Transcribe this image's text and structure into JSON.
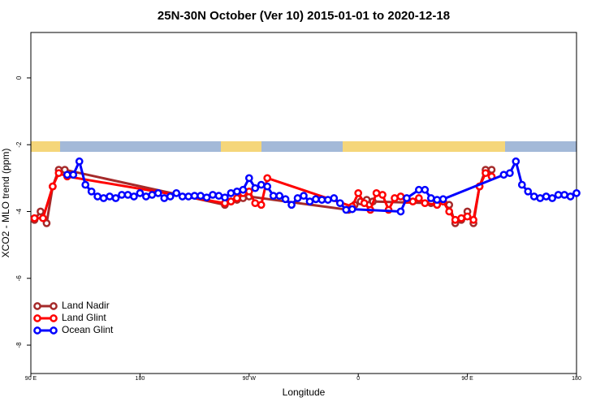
{
  "chart_data": {
    "type": "line",
    "title": "25N-30N October (Ver 10)   2015-01-01 to 2020-12-18",
    "x_label": "Longitude",
    "y_label": "XCO2 - MLO trend (ppm)",
    "xlim": [
      90,
      540
    ],
    "xticks": [
      {
        "value": 90,
        "label": "90 E"
      },
      180,
      {
        "value": 270,
        "label": "90 W"
      },
      {
        "value": 360,
        "label": "0"
      },
      {
        "value": 450,
        "label": "90 E"
      },
      {
        "value": 540,
        "label": "180"
      }
    ],
    "ylim": [
      -8.85,
      1.36
    ],
    "yticks": [
      0,
      -2,
      -4,
      -6,
      -8
    ],
    "legend": "bottom-left",
    "series": [
      {
        "name": "Land Nadir",
        "color": "#a52a2a",
        "x": [
          93,
          98,
          103,
          108,
          113,
          118,
          250,
          255,
          260,
          265,
          270,
          352,
          357,
          362,
          367,
          372,
          420,
          425,
          430,
          435,
          440,
          445,
          450,
          455,
          460,
          465,
          470
        ],
        "values": [
          -4.25,
          -4.0,
          -4.35,
          -3.25,
          -2.75,
          -2.75,
          -3.8,
          -3.7,
          -3.65,
          -3.6,
          -3.55,
          -3.95,
          -3.8,
          -3.7,
          -3.65,
          -3.7,
          -3.75,
          -3.7,
          -3.7,
          -3.8,
          -4.35,
          -4.25,
          -4.0,
          -4.35,
          -3.25,
          -2.75,
          -2.75
        ]
      },
      {
        "name": "Land Glint",
        "color": "#ff0000",
        "x": [
          93,
          100,
          108,
          113,
          120,
          250,
          255,
          260,
          265,
          270,
          275,
          280,
          285,
          355,
          360,
          365,
          370,
          375,
          380,
          385,
          390,
          395,
          400,
          405,
          410,
          415,
          425,
          430,
          435,
          440,
          445,
          450,
          455,
          460,
          465,
          470
        ],
        "values": [
          -4.2,
          -4.2,
          -3.25,
          -2.85,
          -2.95,
          -3.75,
          -3.7,
          -3.6,
          -3.45,
          -3.4,
          -3.75,
          -3.8,
          -3.0,
          -3.85,
          -3.45,
          -3.75,
          -3.95,
          -3.45,
          -3.5,
          -3.95,
          -3.6,
          -3.55,
          -3.65,
          -3.7,
          -3.6,
          -3.75,
          -3.8,
          -3.7,
          -4.0,
          -4.25,
          -4.2,
          -4.15,
          -4.25,
          -3.25,
          -2.85,
          -2.95
        ]
      },
      {
        "name": "Ocean Glint",
        "color": "#0000ff",
        "x": [
          120,
          125,
          130,
          135,
          140,
          145,
          150,
          155,
          160,
          165,
          170,
          175,
          180,
          185,
          190,
          195,
          200,
          205,
          210,
          215,
          220,
          225,
          230,
          235,
          240,
          245,
          250,
          255,
          260,
          265,
          270,
          275,
          280,
          285,
          290,
          295,
          300,
          305,
          310,
          315,
          320,
          325,
          330,
          335,
          340,
          345,
          350,
          355,
          395,
          400,
          410,
          415,
          420,
          425,
          430,
          480,
          485,
          490,
          495,
          500,
          505,
          510,
          515,
          520,
          525,
          530,
          535,
          540
        ],
        "values": [
          -2.9,
          -2.9,
          -2.5,
          -3.2,
          -3.4,
          -3.55,
          -3.6,
          -3.55,
          -3.6,
          -3.5,
          -3.5,
          -3.55,
          -3.45,
          -3.55,
          -3.5,
          -3.45,
          -3.6,
          -3.55,
          -3.45,
          -3.55,
          -3.55,
          -3.53,
          -3.53,
          -3.58,
          -3.5,
          -3.53,
          -3.58,
          -3.45,
          -3.4,
          -3.35,
          -3.0,
          -3.3,
          -3.2,
          -3.25,
          -3.53,
          -3.53,
          -3.63,
          -3.8,
          -3.6,
          -3.53,
          -3.7,
          -3.63,
          -3.65,
          -3.65,
          -3.6,
          -3.75,
          -3.95,
          -3.93,
          -4.0,
          -3.6,
          -3.35,
          -3.35,
          -3.6,
          -3.65,
          -3.63,
          -2.9,
          -2.85,
          -2.5,
          -3.2,
          -3.4,
          -3.55,
          -3.6,
          -3.55,
          -3.6,
          -3.5,
          -3.5,
          -3.55,
          -3.45
        ]
      }
    ]
  }
}
